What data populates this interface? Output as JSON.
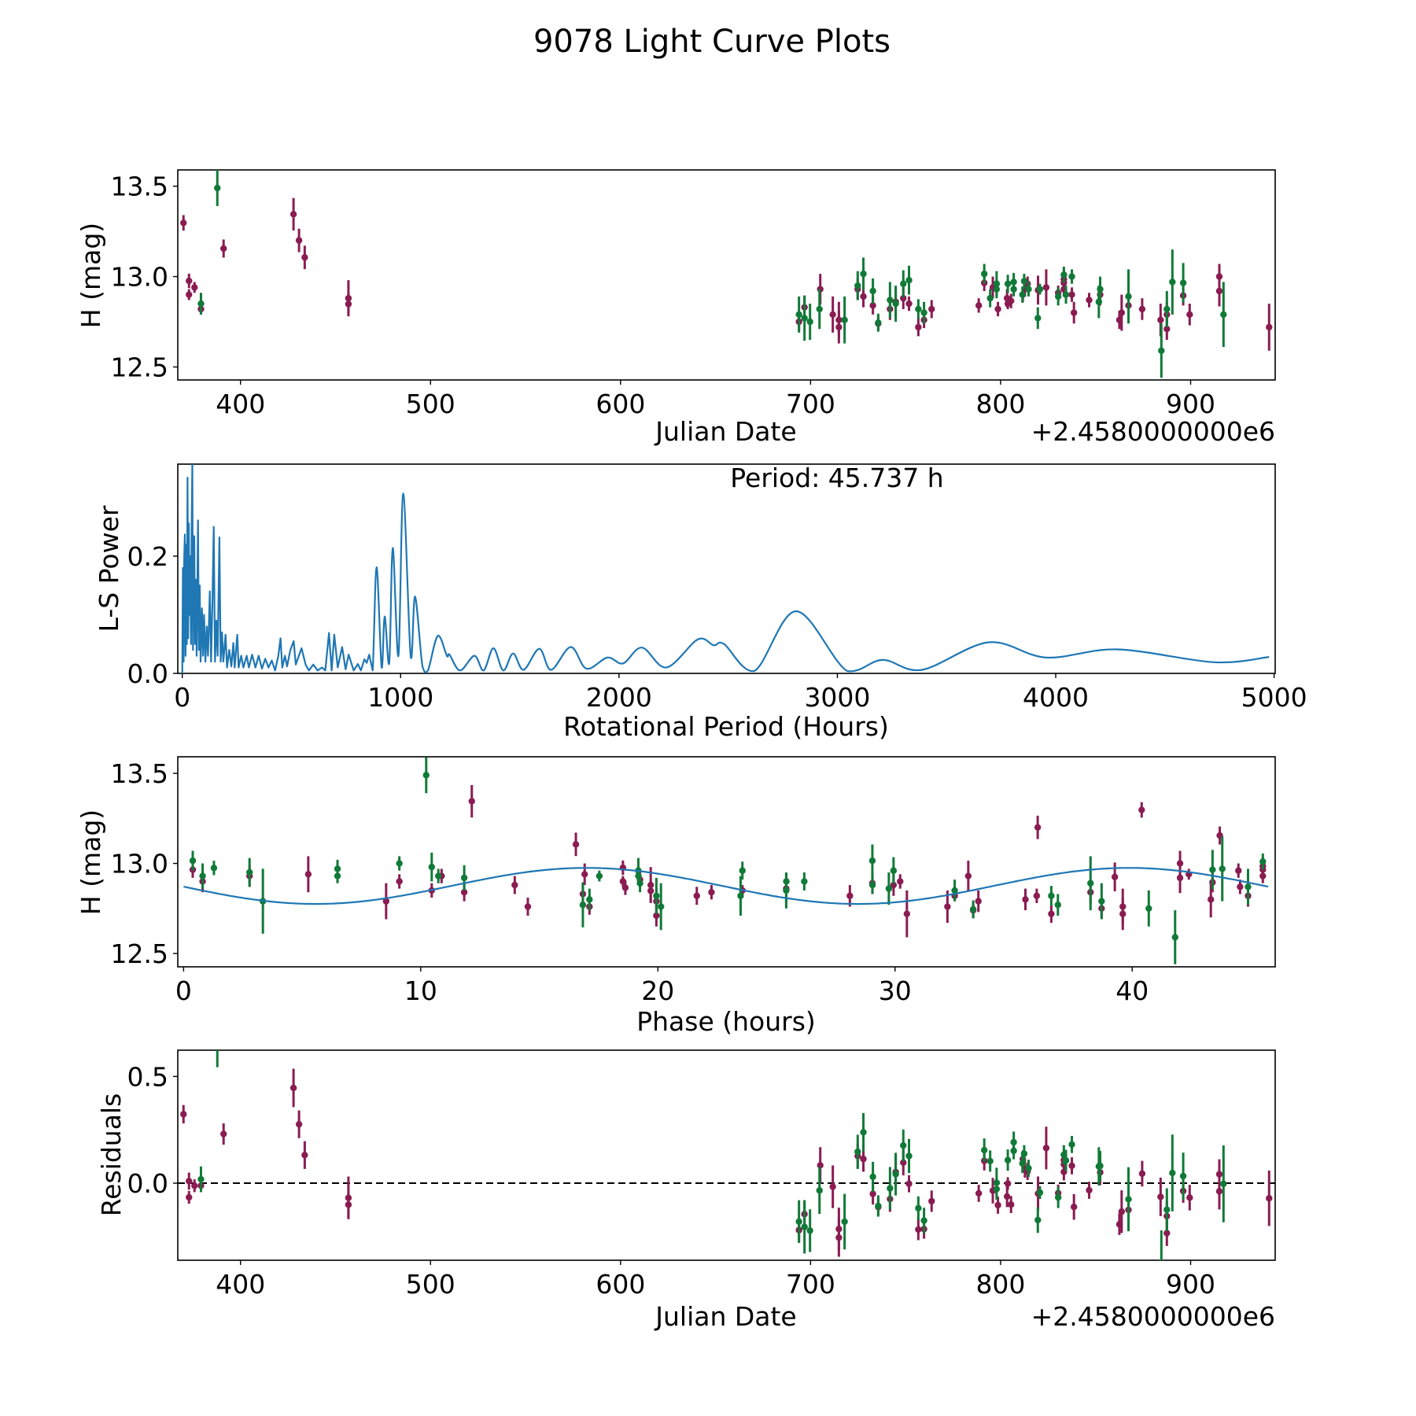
{
  "figure": {
    "title": "9078 Light Curve Plots"
  },
  "colors": {
    "purple": "#8a1c52",
    "green": "#117a38",
    "curve": "#1f77b4",
    "zero_line": "#000000"
  },
  "chart_data": [
    {
      "type": "scatter",
      "name": "light-curve",
      "xlabel": "Julian Date",
      "ylabel": "H (mag)",
      "x_offset_label": "+2.4580000000e6",
      "xlim": [
        367.0,
        944.5
      ],
      "ylim": [
        12.428,
        13.59
      ],
      "xticks": [
        "400",
        "500",
        "600",
        "700",
        "800",
        "900"
      ],
      "yticks": [
        "12.5",
        "13.0",
        "13.5"
      ],
      "series": [
        {
          "name": "purple",
          "color": "#8a1c52",
          "points": [
            [
              370.0,
              13.297,
              0.043
            ],
            [
              372.9,
              12.976,
              0.04
            ],
            [
              372.9,
              12.9,
              0.03
            ],
            [
              375.8,
              12.94,
              0.03
            ],
            [
              379.2,
              12.82,
              0.03
            ],
            [
              391.1,
              13.155,
              0.05
            ],
            [
              427.9,
              13.345,
              0.09
            ],
            [
              430.8,
              13.2,
              0.065
            ],
            [
              433.8,
              13.106,
              0.065
            ],
            [
              456.8,
              12.88,
              0.1
            ],
            [
              456.8,
              12.848,
              0.06
            ],
            [
              693.9,
              12.75,
              0.05
            ],
            [
              696.8,
              12.83,
              0.065
            ],
            [
              705.1,
              12.93,
              0.085
            ],
            [
              711.7,
              12.79,
              0.1
            ],
            [
              714.9,
              12.76,
              0.1
            ],
            [
              714.9,
              12.72,
              0.09
            ],
            [
              724.8,
              12.93,
              0.06
            ],
            [
              727.8,
              12.89,
              0.06
            ],
            [
              732.8,
              12.84,
              0.05
            ],
            [
              735.6,
              12.74,
              0.04
            ],
            [
              741.8,
              12.82,
              0.06
            ],
            [
              744.8,
              12.86,
              0.08
            ],
            [
              748.8,
              12.88,
              0.06
            ],
            [
              751.8,
              12.85,
              0.04
            ],
            [
              756.7,
              12.72,
              0.05
            ],
            [
              759.7,
              12.76,
              0.045
            ],
            [
              763.7,
              12.82,
              0.05
            ],
            [
              788.5,
              12.84,
              0.04
            ],
            [
              791.4,
              12.965,
              0.045
            ],
            [
              795.9,
              12.94,
              0.06
            ],
            [
              798.6,
              12.82,
              0.04
            ],
            [
              803.4,
              12.88,
              0.05
            ],
            [
              803.8,
              12.85,
              0.03
            ],
            [
              805.5,
              12.865,
              0.04
            ],
            [
              811.7,
              12.9,
              0.04
            ],
            [
              812.8,
              12.93,
              0.04
            ],
            [
              814.2,
              12.96,
              0.04
            ],
            [
              819.7,
              12.925,
              0.08
            ],
            [
              824.0,
              12.94,
              0.1
            ],
            [
              830.3,
              12.91,
              0.04
            ],
            [
              833.3,
              12.985,
              0.05
            ],
            [
              833.3,
              12.965,
              0.05
            ],
            [
              833.3,
              12.93,
              0.04
            ],
            [
              837.5,
              12.9,
              0.04
            ],
            [
              838.6,
              12.8,
              0.06
            ],
            [
              846.6,
              12.87,
              0.04
            ],
            [
              852.4,
              12.9,
              0.06
            ],
            [
              862.5,
              12.76,
              0.05
            ],
            [
              863.7,
              12.8,
              0.1
            ],
            [
              867.3,
              12.84,
              0.06
            ],
            [
              874.5,
              12.82,
              0.06
            ],
            [
              884.2,
              12.76,
              0.09
            ],
            [
              887.5,
              12.79,
              0.07
            ],
            [
              887.5,
              12.71,
              0.06
            ],
            [
              896.1,
              12.895,
              0.055
            ],
            [
              899.5,
              12.79,
              0.06
            ],
            [
              915.1,
              13.0,
              0.07
            ],
            [
              915.1,
              12.92,
              0.085
            ],
            [
              941.3,
              12.72,
              0.13
            ]
          ]
        },
        {
          "name": "green",
          "color": "#117a38",
          "points": [
            [
              379.2,
              12.85,
              0.06
            ],
            [
              387.8,
              13.49,
              0.1
            ],
            [
              693.9,
              12.79,
              0.1
            ],
            [
              696.8,
              12.77,
              0.125
            ],
            [
              699.7,
              12.75,
              0.1
            ],
            [
              704.7,
              12.82,
              0.11
            ],
            [
              717.9,
              12.76,
              0.13
            ],
            [
              724.8,
              12.95,
              0.08
            ],
            [
              727.8,
              13.015,
              0.09
            ],
            [
              732.8,
              12.92,
              0.07
            ],
            [
              735.6,
              12.745,
              0.05
            ],
            [
              741.8,
              12.87,
              0.1
            ],
            [
              744.8,
              12.85,
              0.1
            ],
            [
              748.8,
              12.96,
              0.075
            ],
            [
              751.8,
              12.98,
              0.08
            ],
            [
              756.7,
              12.82,
              0.055
            ],
            [
              759.7,
              12.8,
              0.06
            ],
            [
              791.4,
              13.015,
              0.055
            ],
            [
              794.5,
              12.88,
              0.05
            ],
            [
              797.9,
              12.96,
              0.07
            ],
            [
              797.9,
              12.93,
              0.05
            ],
            [
              803.8,
              12.96,
              0.05
            ],
            [
              806.9,
              12.97,
              0.05
            ],
            [
              806.9,
              12.93,
              0.04
            ],
            [
              811.5,
              12.9,
              0.045
            ],
            [
              812.4,
              12.975,
              0.04
            ],
            [
              814.7,
              12.93,
              0.04
            ],
            [
              819.6,
              12.77,
              0.06
            ],
            [
              820.7,
              12.93,
              0.03
            ],
            [
              830.3,
              12.89,
              0.05
            ],
            [
              833.3,
              13.01,
              0.045
            ],
            [
              834.4,
              12.9,
              0.05
            ],
            [
              837.5,
              13.0,
              0.04
            ],
            [
              851.7,
              12.86,
              0.09
            ],
            [
              852.4,
              12.93,
              0.07
            ],
            [
              867.3,
              12.89,
              0.15
            ],
            [
              884.6,
              12.59,
              0.15
            ],
            [
              887.5,
              12.82,
              0.1
            ],
            [
              890.4,
              12.97,
              0.18
            ],
            [
              896.1,
              12.965,
              0.11
            ],
            [
              917.3,
              12.79,
              0.18
            ]
          ]
        }
      ]
    },
    {
      "type": "line",
      "name": "periodogram",
      "xlabel": "Rotational Period (Hours)",
      "ylabel": "L-S Power",
      "annotation": "Period: 45.737 h",
      "xlim": [
        -20.5,
        5005
      ],
      "ylim": [
        0,
        0.357
      ],
      "xticks": [
        "0",
        "1000",
        "2000",
        "3000",
        "4000",
        "5000"
      ],
      "yticks": [
        "0.0",
        "0.2"
      ],
      "points": [
        [
          0,
          0.0
        ],
        [
          3,
          0.18
        ],
        [
          6,
          0.02
        ],
        [
          9,
          0.2
        ],
        [
          12,
          0.237
        ],
        [
          15,
          0.03
        ],
        [
          18,
          0.22
        ],
        [
          21,
          0.05
        ],
        [
          24,
          0.334
        ],
        [
          27,
          0.06
        ],
        [
          30,
          0.256
        ],
        [
          33,
          0.1
        ],
        [
          36,
          0.2
        ],
        [
          40,
          0.05
        ],
        [
          43,
          0.25
        ],
        [
          46,
          0.36
        ],
        [
          49,
          0.04
        ],
        [
          52,
          0.2
        ],
        [
          55,
          0.234
        ],
        [
          58,
          0.05
        ],
        [
          62,
          0.16
        ],
        [
          66,
          0.03
        ],
        [
          72,
          0.261
        ],
        [
          76,
          0.04
        ],
        [
          80,
          0.15
        ],
        [
          84,
          0.02
        ],
        [
          90,
          0.111
        ],
        [
          95,
          0.03
        ],
        [
          100,
          0.1
        ],
        [
          106,
          0.02
        ],
        [
          112,
          0.08
        ],
        [
          118,
          0.03
        ],
        [
          126,
          0.14
        ],
        [
          132,
          0.02
        ],
        [
          138,
          0.12
        ],
        [
          144,
          0.25
        ],
        [
          150,
          0.02
        ],
        [
          156,
          0.09
        ],
        [
          162,
          0.03
        ],
        [
          170,
          0.232
        ],
        [
          176,
          0.02
        ],
        [
          182,
          0.07
        ],
        [
          188,
          0.02
        ],
        [
          198,
          0.066
        ],
        [
          205,
          0.01
        ],
        [
          215,
          0.04
        ],
        [
          225,
          0.012
        ],
        [
          234,
          0.052
        ],
        [
          240,
          0.01
        ],
        [
          252,
          0.066
        ],
        [
          258,
          0.01
        ],
        [
          270,
          0.03
        ],
        [
          280,
          0.01
        ],
        [
          295,
          0.03
        ],
        [
          305,
          0.01
        ],
        [
          320,
          0.032
        ],
        [
          335,
          0.01
        ],
        [
          350,
          0.03
        ],
        [
          365,
          0.008
        ],
        [
          380,
          0.025
        ],
        [
          395,
          0.01
        ],
        [
          410,
          0.022
        ],
        [
          425,
          0.005
        ],
        [
          440,
          0.03
        ],
        [
          450,
          0.06
        ],
        [
          458,
          0.01
        ],
        [
          470,
          0.03
        ],
        [
          480,
          0.012
        ],
        [
          495,
          0.04
        ],
        [
          510,
          0.055
        ],
        [
          520,
          0.015
        ],
        [
          546,
          0.043
        ],
        [
          565,
          0.015
        ],
        [
          580,
          0.005
        ],
        [
          600,
          0.015
        ],
        [
          620,
          0.005
        ],
        [
          640,
          0.01
        ],
        [
          655,
          0.005
        ],
        [
          672,
          0.069
        ],
        [
          684,
          0.005
        ],
        [
          696,
          0.066
        ],
        [
          712,
          0.01
        ],
        [
          732,
          0.045
        ],
        [
          748,
          0.007
        ],
        [
          762,
          0.032
        ],
        [
          785,
          0.005
        ],
        [
          804,
          0.016
        ],
        [
          818,
          0.005
        ],
        [
          834,
          0.024
        ],
        [
          845,
          0.018
        ],
        [
          856,
          0.032
        ],
        [
          872,
          0.005
        ],
        [
          890,
          0.181
        ],
        [
          913,
          0.01
        ],
        [
          927,
          0.097
        ],
        [
          948,
          0.018
        ],
        [
          964,
          0.214
        ],
        [
          990,
          0.03
        ],
        [
          1012,
          0.307
        ],
        [
          1046,
          0.03
        ],
        [
          1066,
          0.131
        ],
        [
          1100,
          0.012
        ],
        [
          1125,
          0.005
        ],
        [
          1170,
          0.064
        ],
        [
          1212,
          0.03
        ],
        [
          1224,
          0.032
        ],
        [
          1272,
          0.005
        ],
        [
          1338,
          0.03
        ],
        [
          1380,
          0.005
        ],
        [
          1425,
          0.043
        ],
        [
          1470,
          0.005
        ],
        [
          1515,
          0.034
        ],
        [
          1563,
          0.006
        ],
        [
          1635,
          0.042
        ],
        [
          1689,
          0.006
        ],
        [
          1779,
          0.045
        ],
        [
          1851,
          0.008
        ],
        [
          1947,
          0.027
        ],
        [
          2019,
          0.017
        ],
        [
          2105,
          0.044
        ],
        [
          2217,
          0.01
        ],
        [
          2361,
          0.058
        ],
        [
          2433,
          0.048
        ],
        [
          2481,
          0.05
        ],
        [
          2619,
          0.004
        ],
        [
          2811,
          0.106
        ],
        [
          3045,
          0.004
        ],
        [
          3207,
          0.023
        ],
        [
          3387,
          0.006
        ],
        [
          3693,
          0.053
        ],
        [
          3957,
          0.027
        ],
        [
          4281,
          0.041
        ],
        [
          4725,
          0.019
        ],
        [
          4977,
          0.028
        ]
      ]
    },
    {
      "type": "scatter",
      "name": "phased-light-curve",
      "xlabel": "Phase (hours)",
      "ylabel": "H (mag)",
      "xlim": [
        -0.245,
        46.03
      ],
      "ylim": [
        12.426,
        13.592
      ],
      "xticks": [
        "0",
        "10",
        "20",
        "30",
        "40"
      ],
      "yticks": [
        "12.5",
        "13.0",
        "13.5"
      ],
      "period_hours": 45.737,
      "phase_epoch_jd": 370.0,
      "phase_at_epoch": 40.4,
      "model": {
        "mean": 12.875,
        "amplitude": 0.1,
        "peak_phase": 17.0,
        "harmonic": 2
      }
    },
    {
      "type": "scatter",
      "name": "residuals",
      "xlabel": "Julian Date",
      "ylabel": "Residuals",
      "x_offset_label": "+2.4580000000e6",
      "xlim": [
        367.0,
        944.5
      ],
      "ylim": [
        -0.361,
        0.623
      ],
      "xticks": [
        "400",
        "500",
        "600",
        "700",
        "800",
        "900"
      ],
      "yticks": [
        "0.0",
        "0.5"
      ],
      "zero_line": 0.0
    }
  ]
}
